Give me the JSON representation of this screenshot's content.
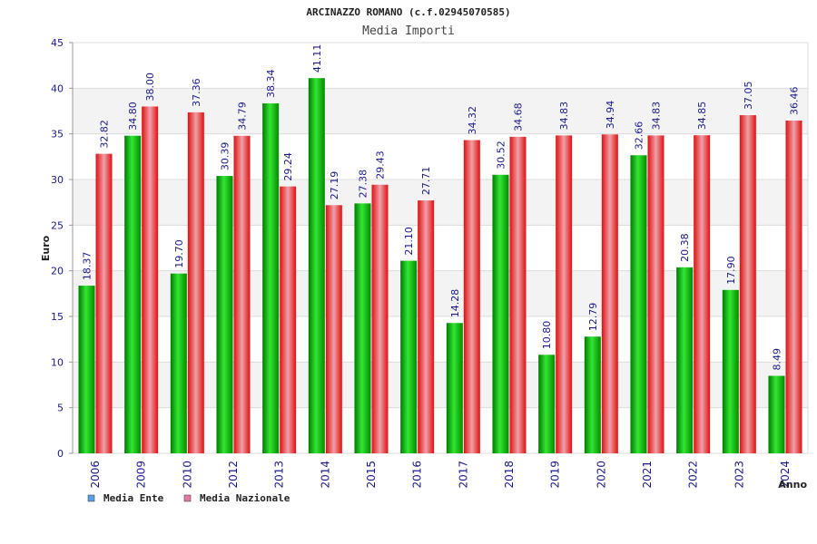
{
  "chart_data": {
    "type": "bar",
    "title": "ARCINAZZO ROMANO (c.f.02945070585)",
    "subtitle": "Media Importi",
    "xlabel": "Anno",
    "ylabel": "Euro",
    "ylim": [
      0,
      45
    ],
    "yticks": [
      "0",
      "5",
      "10",
      "15",
      "20",
      "25",
      "30",
      "35",
      "40",
      "45"
    ],
    "grid": true,
    "legend_position": "bottom-left",
    "categories": [
      "2006",
      "2009",
      "2010",
      "2012",
      "2013",
      "2014",
      "2015",
      "2016",
      "2017",
      "2018",
      "2019",
      "2020",
      "2021",
      "2022",
      "2023",
      "2024"
    ],
    "series": [
      {
        "name": "Media Ente",
        "color": "#00b400",
        "legend_color": "#5aa0e6",
        "values": [
          18.37,
          34.8,
          19.7,
          30.39,
          38.34,
          41.11,
          27.38,
          21.1,
          14.28,
          30.52,
          10.8,
          12.79,
          32.66,
          20.38,
          17.9,
          8.49
        ],
        "labels": [
          "18.37",
          "34.80",
          "19.70",
          "30.39",
          "38.34",
          "41.11",
          "27.38",
          "21.10",
          "14.28",
          "30.52",
          "10.80",
          "12.79",
          "32.66",
          "20.38",
          "17.90",
          "8.49"
        ]
      },
      {
        "name": "Media Nazionale",
        "color": "#e01010",
        "legend_color": "#e07aa0",
        "values": [
          32.82,
          38.0,
          37.36,
          34.79,
          29.24,
          27.19,
          29.43,
          27.71,
          34.32,
          34.68,
          34.83,
          34.94,
          34.83,
          34.85,
          37.05,
          36.46
        ],
        "labels": [
          "32.82",
          "38.00",
          "37.36",
          "34.79",
          "29.24",
          "27.19",
          "29.43",
          "27.71",
          "34.32",
          "34.68",
          "34.83",
          "34.94",
          "34.83",
          "34.85",
          "37.05",
          "36.46"
        ]
      }
    ]
  }
}
